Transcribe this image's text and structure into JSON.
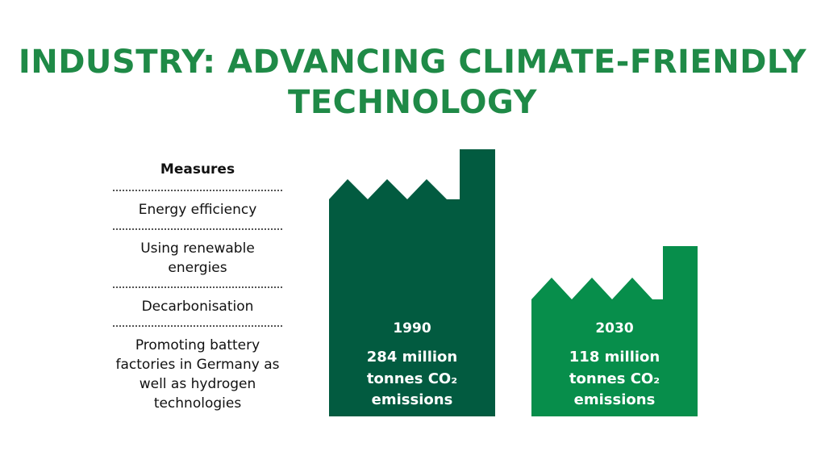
{
  "title": {
    "line1": "INDUSTRY: ADVANCING CLIMATE-FRIENDLY",
    "line2": "TECHNOLOGY"
  },
  "measures": {
    "heading": "Measures",
    "items": [
      "Energy efficiency",
      "Using renewable energies",
      "Decarbonisation",
      "Promoting battery factories in Germany as well as hydrogen technologies"
    ]
  },
  "factories": [
    {
      "year": "1990",
      "amount": "284 million",
      "unit": "tonnes CO₂",
      "label": "emissions",
      "color": "#025b40"
    },
    {
      "year": "2030",
      "amount": "118 million",
      "unit": "tonnes CO₂",
      "label": "emissions",
      "color": "#078e4b"
    }
  ]
}
